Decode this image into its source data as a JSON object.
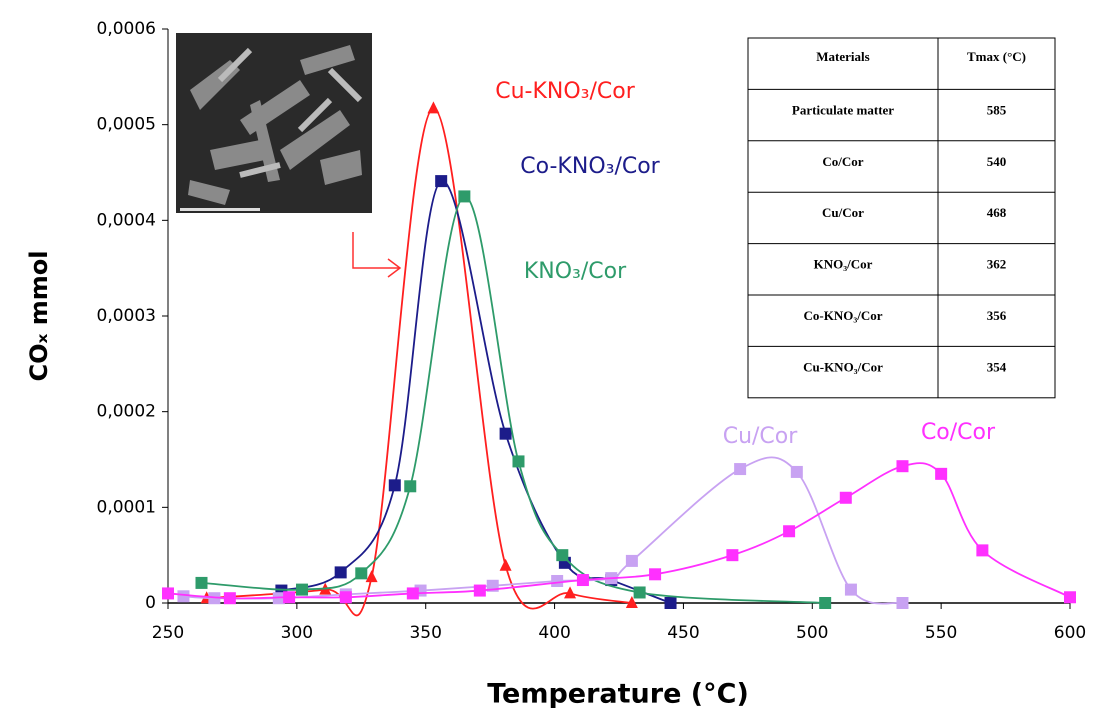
{
  "chart_data": {
    "type": "line",
    "ylabel": "COₓ mmol",
    "xlabel": "Temperature (°C)",
    "xlim": [
      250,
      600
    ],
    "xticks": [
      250,
      300,
      350,
      400,
      450,
      500,
      550,
      600
    ],
    "ylim": [
      0,
      0.0006
    ],
    "yticks": [
      0,
      {
        "value": 0.0001,
        "label": "0,0001"
      },
      {
        "value": 0.0002,
        "label": "0,0002"
      },
      {
        "value": 0.0003,
        "label": "0,0003"
      },
      {
        "value": 0.0004,
        "label": "0,0004"
      },
      {
        "value": 0.0005,
        "label": "0,0005"
      },
      {
        "value": 0.0006,
        "label": "0,0006"
      }
    ],
    "series": [
      {
        "name": "Cu-KNO₃/Cor",
        "color": "#ff1f1f",
        "marker": "triangle",
        "x": [
          265,
          311,
          329,
          353,
          381,
          406,
          430
        ],
        "values": [
          5e-06,
          1.4e-05,
          2.7e-05,
          0.000517,
          3.9e-05,
          1e-05,
          0
        ]
      },
      {
        "name": "Co-KNO₃/Cor",
        "color": "#1c1c8a",
        "marker": "square",
        "x": [
          294,
          317,
          338,
          356,
          381,
          404,
          422,
          445
        ],
        "values": [
          1.3e-05,
          3.2e-05,
          0.000123,
          0.000441,
          0.000177,
          4.2e-05,
          2.4e-05,
          0
        ]
      },
      {
        "name": "KNO₃/Cor",
        "color": "#2e9b6a",
        "marker": "square",
        "x": [
          263,
          302,
          325,
          344,
          365,
          386,
          403,
          433,
          505
        ],
        "values": [
          2.1e-05,
          1.4e-05,
          3.1e-05,
          0.000122,
          0.000425,
          0.000148,
          5e-05,
          1.1e-05,
          0
        ]
      },
      {
        "name": "Cu/Cor",
        "color": "#c8a2f2",
        "marker": "square",
        "x": [
          256,
          268,
          293,
          319,
          348,
          376,
          401,
          422,
          430,
          472,
          494,
          515,
          535
        ],
        "values": [
          7e-06,
          5e-06,
          5e-06,
          9e-06,
          1.3e-05,
          1.8e-05,
          2.3e-05,
          2.6e-05,
          4.4e-05,
          0.00014,
          0.000137,
          1.4e-05,
          0
        ]
      },
      {
        "name": "Co/Cor",
        "color": "#ff30ff",
        "marker": "square",
        "x": [
          250,
          274,
          297,
          319,
          345,
          371,
          411,
          439,
          469,
          491,
          513,
          535,
          550,
          566,
          600
        ],
        "values": [
          1e-05,
          5e-06,
          6e-06,
          6e-06,
          1e-05,
          1.3e-05,
          2.4e-05,
          3e-05,
          5e-05,
          7.5e-05,
          0.00011,
          0.000143,
          0.000135,
          5.5e-05,
          6e-06
        ]
      }
    ],
    "table": {
      "header": [
        "Materials",
        "Tmax (°C)"
      ],
      "rows": [
        [
          "Particulate matter",
          585
        ],
        [
          "Co/Cor",
          540
        ],
        [
          "Cu/Cor",
          468
        ],
        [
          "KNO₃/Cor",
          362
        ],
        [
          "Co-KNO₃/Cor",
          356
        ],
        [
          "Cu-KNO₃/Cor",
          354
        ]
      ]
    }
  }
}
